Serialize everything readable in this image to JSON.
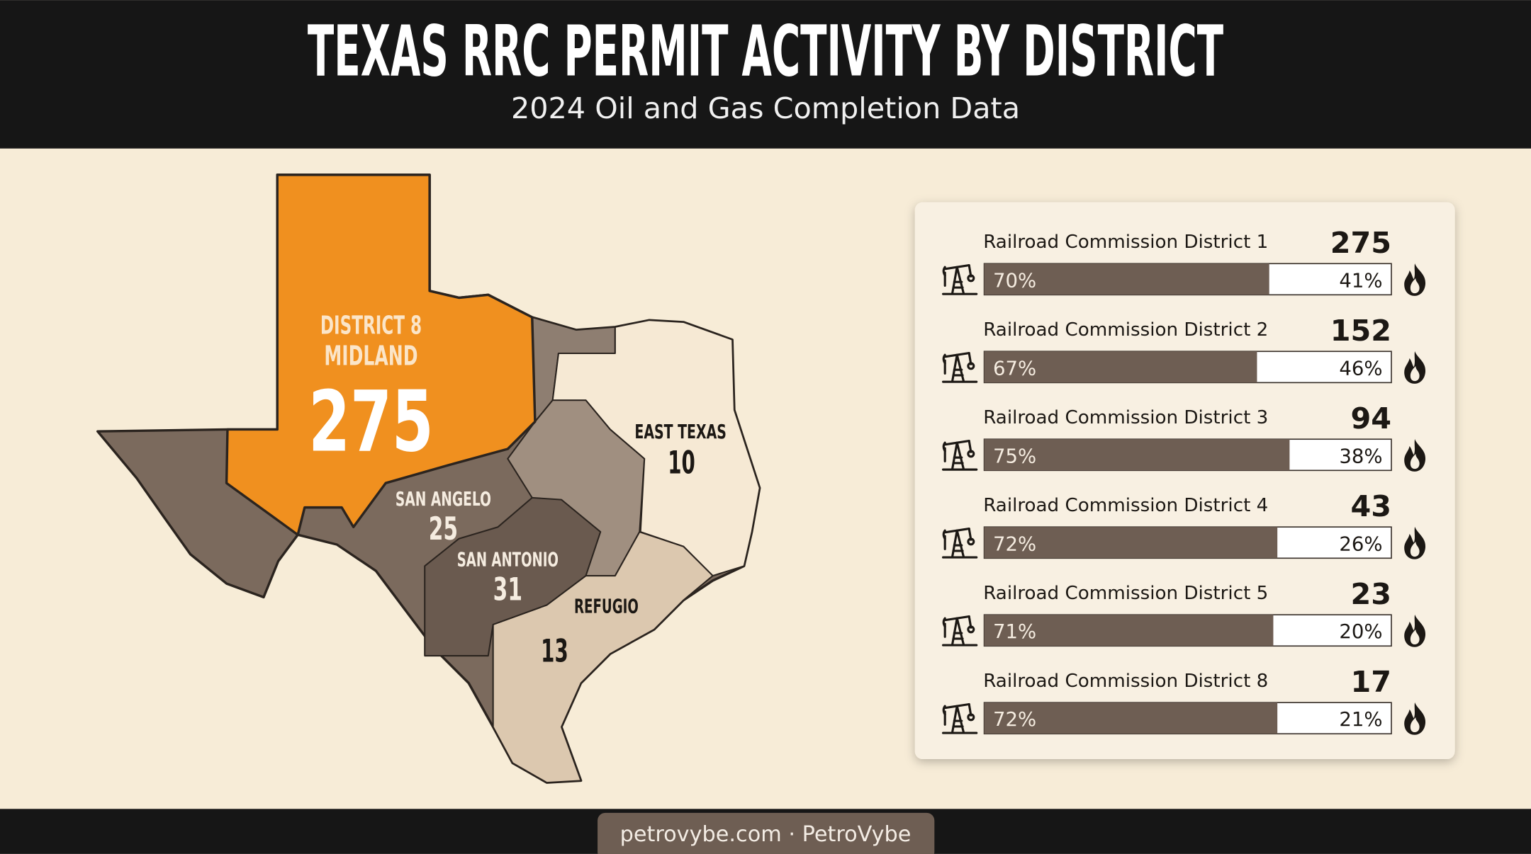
{
  "header": {
    "title": "TEXAS RRC PERMIT ACTIVITY BY DISTRICT",
    "subtitle": "2024 Oil and Gas Completion Data"
  },
  "map": {
    "regions": [
      {
        "name": "DISTRICT 8",
        "city": "MIDLAND",
        "count": 275
      },
      {
        "name": "SAN ANGELO",
        "count": 25
      },
      {
        "name": "SAN ANTONIO",
        "count": 31
      },
      {
        "name": "REFUGIO",
        "count": 13
      },
      {
        "name": "EAST TEXAS",
        "count": 10
      }
    ]
  },
  "panel": {
    "rows": [
      {
        "name": "Railroad Commission District 1",
        "count": 275,
        "share": {
          "value": 70,
          "label": "70%"
        },
        "rate": "41%"
      },
      {
        "name": "Railroad Commission District 2",
        "count": 152,
        "share": {
          "value": 67,
          "label": "67%"
        },
        "rate": "46%"
      },
      {
        "name": "Railroad Commission District 3",
        "count": 94,
        "share": {
          "value": 75,
          "label": "75%"
        },
        "rate": "38%"
      },
      {
        "name": "Railroad Commission District 4",
        "count": 43,
        "share": {
          "value": 72,
          "label": "72%"
        },
        "rate": "26%"
      },
      {
        "name": "Railroad Commission District 5",
        "count": 23,
        "share": {
          "value": 71,
          "label": "71%"
        },
        "rate": "20%"
      },
      {
        "name": "Railroad Commission District 8",
        "count": 17,
        "share": {
          "value": 72,
          "label": "72%"
        },
        "rate": "21%"
      }
    ]
  },
  "footer": {
    "text": "petrovybe.com · PetroVybe"
  }
}
